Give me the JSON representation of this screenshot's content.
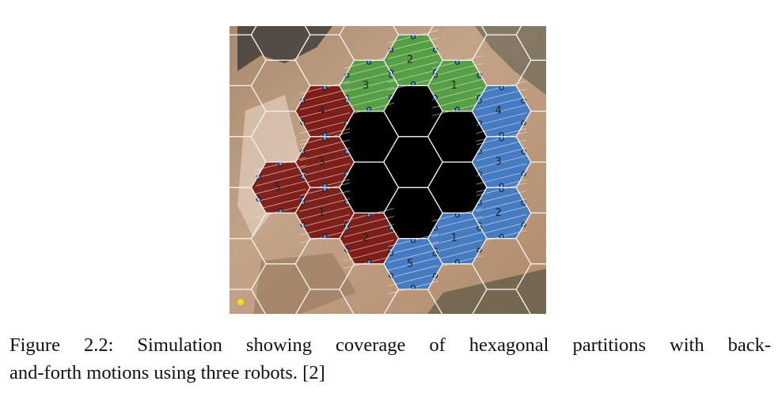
{
  "figure": {
    "center_color": "#000000",
    "robots": [
      {
        "color": "#4c9e3f",
        "labels": [
          "3",
          "2",
          "1"
        ]
      },
      {
        "color": "#7a1410",
        "labels": [
          "4",
          "3",
          "5",
          "1",
          "2"
        ]
      },
      {
        "color": "#3b78c8",
        "labels": [
          "4",
          "3",
          "2",
          "1",
          "5"
        ]
      }
    ]
  },
  "caption": {
    "line1": "Figure 2.2: Simulation showing coverage of hexagonal partitions with back-",
    "line2": "and-forth motions using three robots. [2]"
  }
}
